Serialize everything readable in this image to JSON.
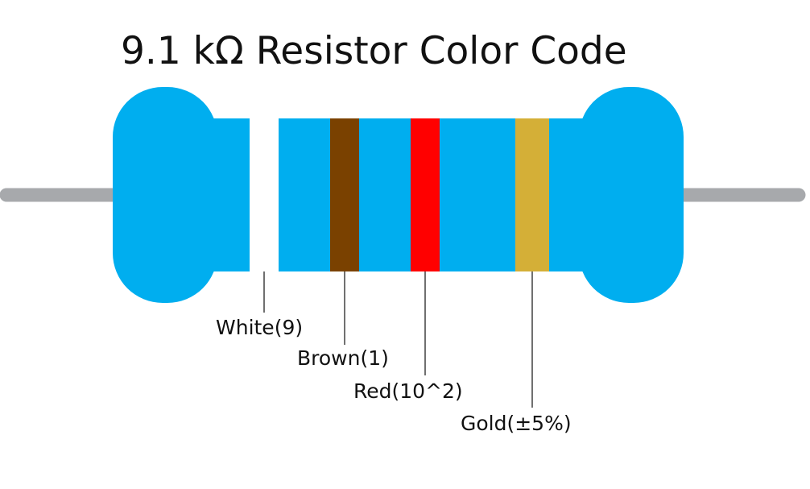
{
  "title": "9.1 kΩ Resistor Color Code",
  "colors": {
    "body": "#00aeef",
    "lead": "#a7a9ac",
    "leader_line": "#111111"
  },
  "bands": [
    {
      "label": "White(9)",
      "color": "#ffffff"
    },
    {
      "label": "Brown(1)",
      "color": "#7a4100"
    },
    {
      "label": "Red(10^2)",
      "color": "#ff0000"
    },
    {
      "label": "Gold(±5%)",
      "color": "#d4af37"
    }
  ]
}
